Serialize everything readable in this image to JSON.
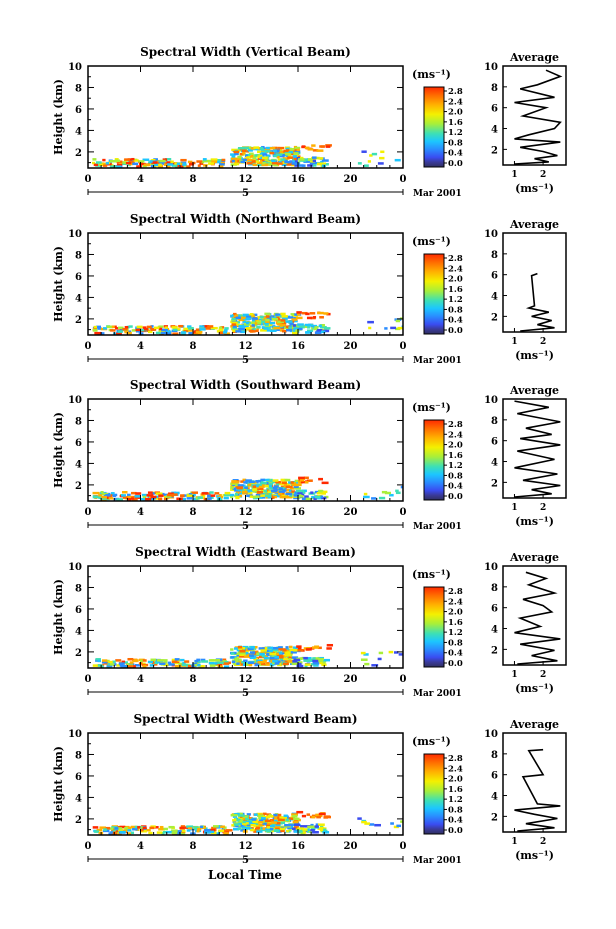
{
  "figure": {
    "xlabel": "Local Time",
    "date_label": "Mar 2001",
    "day_marker": "5",
    "height_label": "Height (km)",
    "units": "(ms⁻¹)",
    "average_title": "Average"
  },
  "colorbar": {
    "ticks": [
      "2.8",
      "2.4",
      "2.0",
      "1.6",
      "1.2",
      "0.8",
      "0.4",
      "0.0"
    ],
    "colors": [
      "#ff2a00",
      "#ff6a00",
      "#ffb000",
      "#f4f000",
      "#a8ef3a",
      "#3ee0b4",
      "#1cc6ff",
      "#2a8cff",
      "#3a4cf0",
      "#3a3a9a",
      "#303060"
    ]
  },
  "chart_data": [
    {
      "type": "heatmap",
      "title": "Spectral Width (Vertical Beam)",
      "ylabel": "Height (km)",
      "xlabel": "Local Time",
      "x_ticks": [
        "0",
        "4",
        "8",
        "12",
        "16",
        "20",
        "0"
      ],
      "y_ticks": [
        "2",
        "4",
        "6",
        "8",
        "10"
      ],
      "xlim": [
        0,
        24
      ],
      "ylim": [
        0.5,
        10
      ],
      "colorbar_units": "(ms⁻¹)",
      "colorbar_ticks": [
        "2.8",
        "2.4",
        "2.0",
        "1.6",
        "1.2",
        "0.8",
        "0.4",
        "0.0"
      ],
      "average": {
        "title": "Average",
        "xlabel": "(ms⁻¹)",
        "x_ticks": [
          "1",
          "2"
        ],
        "y_ticks": [
          "2",
          "4",
          "6",
          "8",
          "10"
        ],
        "xlim": [
          0.6,
          2.8
        ],
        "ylim": [
          0.5,
          10
        ],
        "profile": [
          [
            1.0,
            0.6
          ],
          [
            2.2,
            0.8
          ],
          [
            1.7,
            1.1
          ],
          [
            2.5,
            1.4
          ],
          [
            2.0,
            1.8
          ],
          [
            1.2,
            2.2
          ],
          [
            2.6,
            2.7
          ],
          [
            1.0,
            3.0
          ],
          [
            1.5,
            3.4
          ],
          [
            2.4,
            4.0
          ],
          [
            2.6,
            4.6
          ],
          [
            1.3,
            5.2
          ],
          [
            2.1,
            6.0
          ],
          [
            1.0,
            6.5
          ],
          [
            2.4,
            7.0
          ],
          [
            1.2,
            7.8
          ],
          [
            1.8,
            8.2
          ],
          [
            2.6,
            9.0
          ],
          [
            2.1,
            9.6
          ]
        ]
      }
    },
    {
      "type": "heatmap",
      "title": "Spectral Width (Northward Beam)",
      "ylabel": "Height (km)",
      "xlabel": "Local Time",
      "x_ticks": [
        "0",
        "4",
        "8",
        "12",
        "16",
        "20",
        "0"
      ],
      "y_ticks": [
        "2",
        "4",
        "6",
        "8",
        "10"
      ],
      "xlim": [
        0,
        24
      ],
      "ylim": [
        0.5,
        10
      ],
      "colorbar_units": "(ms⁻¹)",
      "colorbar_ticks": [
        "2.8",
        "2.4",
        "2.0",
        "1.6",
        "1.2",
        "0.8",
        "0.4",
        "0.0"
      ],
      "average": {
        "title": "Average",
        "xlabel": "(ms⁻¹)",
        "x_ticks": [
          "1",
          "2"
        ],
        "y_ticks": [
          "2",
          "4",
          "6",
          "8",
          "10"
        ],
        "xlim": [
          0.6,
          2.8
        ],
        "ylim": [
          0.5,
          10
        ],
        "profile": [
          [
            1.2,
            0.6
          ],
          [
            2.4,
            0.9
          ],
          [
            1.8,
            1.2
          ],
          [
            2.3,
            1.6
          ],
          [
            1.6,
            2.0
          ],
          [
            2.2,
            2.4
          ],
          [
            1.5,
            2.8
          ],
          [
            1.7,
            3.0
          ],
          [
            1.6,
            5.9
          ],
          [
            1.8,
            6.1
          ]
        ]
      }
    },
    {
      "type": "heatmap",
      "title": "Spectral Width (Southward Beam)",
      "ylabel": "Height (km)",
      "xlabel": "Local Time",
      "x_ticks": [
        "0",
        "4",
        "8",
        "12",
        "16",
        "20",
        "0"
      ],
      "y_ticks": [
        "2",
        "4",
        "6",
        "8",
        "10"
      ],
      "xlim": [
        0,
        24
      ],
      "ylim": [
        0.5,
        10
      ],
      "colorbar_units": "(ms⁻¹)",
      "colorbar_ticks": [
        "2.8",
        "2.4",
        "2.0",
        "1.6",
        "1.2",
        "0.8",
        "0.4",
        "0.0"
      ],
      "average": {
        "title": "Average",
        "xlabel": "(ms⁻¹)",
        "x_ticks": [
          "1",
          "2"
        ],
        "y_ticks": [
          "2",
          "4",
          "6",
          "8",
          "10"
        ],
        "xlim": [
          0.6,
          2.8
        ],
        "ylim": [
          0.5,
          10
        ],
        "profile": [
          [
            1.0,
            0.6
          ],
          [
            2.3,
            0.9
          ],
          [
            1.6,
            1.3
          ],
          [
            2.6,
            1.7
          ],
          [
            1.3,
            2.2
          ],
          [
            2.5,
            2.8
          ],
          [
            1.0,
            3.4
          ],
          [
            2.4,
            4.2
          ],
          [
            1.1,
            5.0
          ],
          [
            2.6,
            5.6
          ],
          [
            1.2,
            6.2
          ],
          [
            2.3,
            6.6
          ],
          [
            1.4,
            7.2
          ],
          [
            2.6,
            7.8
          ],
          [
            1.1,
            8.6
          ],
          [
            2.2,
            9.2
          ],
          [
            1.0,
            9.8
          ]
        ]
      }
    },
    {
      "type": "heatmap",
      "title": "Spectral Width (Eastward Beam)",
      "ylabel": "Height (km)",
      "xlabel": "Local Time",
      "x_ticks": [
        "0",
        "4",
        "8",
        "12",
        "16",
        "20",
        "0"
      ],
      "y_ticks": [
        "2",
        "4",
        "6",
        "8",
        "10"
      ],
      "xlim": [
        0,
        24
      ],
      "ylim": [
        0.5,
        10
      ],
      "colorbar_units": "(ms⁻¹)",
      "colorbar_ticks": [
        "2.8",
        "2.4",
        "2.0",
        "1.6",
        "1.2",
        "0.8",
        "0.4",
        "0.0"
      ],
      "average": {
        "title": "Average",
        "xlabel": "(ms⁻¹)",
        "x_ticks": [
          "1",
          "2"
        ],
        "y_ticks": [
          "2",
          "4",
          "6",
          "8",
          "10"
        ],
        "xlim": [
          0.6,
          2.8
        ],
        "ylim": [
          0.5,
          10
        ],
        "profile": [
          [
            1.1,
            0.6
          ],
          [
            2.5,
            0.9
          ],
          [
            1.6,
            1.4
          ],
          [
            2.4,
            1.9
          ],
          [
            1.2,
            2.5
          ],
          [
            2.6,
            3.0
          ],
          [
            1.0,
            3.6
          ],
          [
            1.9,
            4.2
          ],
          [
            1.2,
            5.0
          ],
          [
            2.3,
            5.6
          ],
          [
            2.0,
            6.2
          ],
          [
            1.3,
            6.8
          ],
          [
            2.4,
            7.4
          ],
          [
            1.5,
            8.2
          ],
          [
            2.1,
            8.8
          ],
          [
            1.4,
            9.4
          ]
        ]
      }
    },
    {
      "type": "heatmap",
      "title": "Spectral Width (Westward Beam)",
      "ylabel": "Height (km)",
      "xlabel": "Local Time",
      "x_ticks": [
        "0",
        "4",
        "8",
        "12",
        "16",
        "20",
        "0"
      ],
      "y_ticks": [
        "2",
        "4",
        "6",
        "8",
        "10"
      ],
      "xlim": [
        0,
        24
      ],
      "ylim": [
        0.5,
        10
      ],
      "colorbar_units": "(ms⁻¹)",
      "colorbar_ticks": [
        "2.8",
        "2.4",
        "2.0",
        "1.6",
        "1.2",
        "0.8",
        "0.4",
        "0.0"
      ],
      "average": {
        "title": "Average",
        "xlabel": "(ms⁻¹)",
        "x_ticks": [
          "1",
          "2"
        ],
        "y_ticks": [
          "2",
          "4",
          "6",
          "8",
          "10"
        ],
        "xlim": [
          0.6,
          2.8
        ],
        "ylim": [
          0.5,
          10
        ],
        "profile": [
          [
            1.1,
            0.6
          ],
          [
            2.4,
            0.9
          ],
          [
            1.4,
            1.3
          ],
          [
            2.5,
            1.8
          ],
          [
            1.7,
            2.2
          ],
          [
            1.0,
            2.6
          ],
          [
            2.6,
            3.0
          ],
          [
            1.8,
            3.2
          ],
          [
            1.3,
            5.8
          ],
          [
            2.0,
            6.0
          ],
          [
            1.5,
            8.3
          ],
          [
            2.0,
            8.4
          ]
        ]
      }
    }
  ]
}
